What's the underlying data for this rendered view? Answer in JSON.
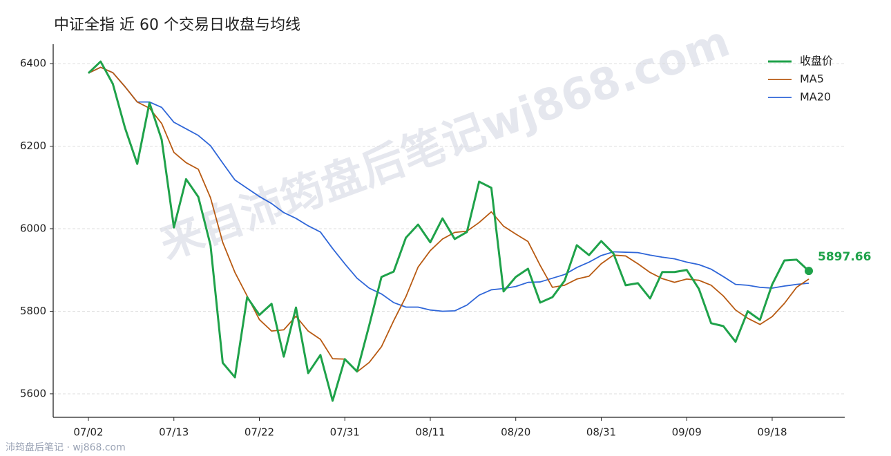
{
  "chart_data": {
    "type": "line",
    "title": "中证全指 近 60 个交易日收盘与均线",
    "watermark": "来自沛筠盘后笔记wj868.com",
    "footer": "沛筠盘后笔记 · wj868.com",
    "categories": [
      "07/02",
      null,
      null,
      null,
      null,
      null,
      null,
      "07/13",
      null,
      null,
      null,
      null,
      null,
      null,
      "07/22",
      null,
      null,
      null,
      null,
      null,
      null,
      "07/31",
      null,
      null,
      null,
      null,
      null,
      null,
      "08/11",
      null,
      null,
      null,
      null,
      null,
      null,
      "08/20",
      null,
      null,
      null,
      null,
      null,
      null,
      "08/31",
      null,
      null,
      null,
      null,
      null,
      null,
      "09/09",
      null,
      null,
      null,
      null,
      null,
      null,
      "09/18",
      null,
      null,
      null
    ],
    "series": [
      {
        "name": "收盘价",
        "color": "#1fa24a",
        "width": 3,
        "values": [
          6377,
          6405,
          6351,
          6244,
          6157,
          6305,
          6216,
          6003,
          6120,
          6077,
          5960,
          5675,
          5640,
          5834,
          5791,
          5818,
          5690,
          5809,
          5650,
          5694,
          5583,
          5684,
          5654,
          5766,
          5883,
          5896,
          5978,
          6010,
          5967,
          6025,
          5975,
          5992,
          6114,
          6099,
          5848,
          5883,
          5903,
          5821,
          5834,
          5874,
          5960,
          5936,
          5970,
          5940,
          5863,
          5868,
          5831,
          5895,
          5895,
          5900,
          5854,
          5771,
          5764,
          5726,
          5800,
          5779,
          5865,
          5923,
          5925,
          5897.66
        ]
      },
      {
        "name": "MA5",
        "color": "#b85a12",
        "width": 1.8,
        "values": [
          6377,
          6391,
          6378,
          6344,
          6307,
          6292,
          6255,
          6185,
          6160,
          6144,
          6075,
          5967,
          5894,
          5837,
          5780,
          5752,
          5755,
          5788,
          5752,
          5732,
          5685,
          5684,
          5653,
          5676,
          5714,
          5777,
          5835,
          5907,
          5947,
          5975,
          5991,
          5994,
          6015,
          6041,
          6006,
          5987,
          5969,
          5911,
          5858,
          5863,
          5878,
          5885,
          5915,
          5936,
          5934,
          5915,
          5894,
          5879,
          5870,
          5878,
          5875,
          5863,
          5837,
          5803,
          5783,
          5768,
          5787,
          5819,
          5858,
          5878
        ]
      },
      {
        "name": "MA20",
        "color": "#2f66d8",
        "width": 1.8,
        "values": [
          6377,
          6391,
          6378,
          6344,
          6307,
          6307,
          6294,
          6258,
          6242,
          6226,
          6201,
          6159,
          6118,
          6098,
          6078,
          6061,
          6039,
          6025,
          6007,
          5992,
          5952,
          5915,
          5880,
          5856,
          5842,
          5821,
          5810,
          5810,
          5803,
          5800,
          5801,
          5815,
          5839,
          5852,
          5855,
          5860,
          5870,
          5871,
          5880,
          5889,
          5906,
          5919,
          5935,
          5944,
          5943,
          5942,
          5936,
          5931,
          5927,
          5919,
          5913,
          5902,
          5884,
          5865,
          5863,
          5858,
          5856,
          5861,
          5865,
          5868
        ]
      }
    ],
    "ylim": [
      5543,
      6447
    ],
    "yticks": [
      5600,
      5800,
      6000,
      6200,
      6400
    ],
    "grid": true,
    "legend": "upper right"
  }
}
